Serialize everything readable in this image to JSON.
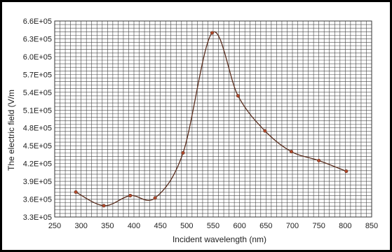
{
  "chart_data": {
    "type": "line",
    "title": "",
    "xlabel": "Incident wavelength (nm)",
    "ylabel": "The electric field (V/m",
    "xlim": [
      250,
      850
    ],
    "ylim": [
      330000,
      660000
    ],
    "x_ticks": [
      250,
      300,
      350,
      400,
      450,
      500,
      550,
      600,
      650,
      700,
      750,
      800,
      850
    ],
    "x_tick_labels": [
      "250",
      "300",
      "350",
      "400",
      "450",
      "500",
      "550",
      "600",
      "650",
      "700",
      "750",
      "800",
      "850"
    ],
    "y_ticks": [
      330000,
      360000,
      390000,
      420000,
      450000,
      480000,
      510000,
      540000,
      570000,
      600000,
      630000,
      660000
    ],
    "y_tick_labels": [
      "3.3E+05",
      "3.6E+05",
      "3.9E+05",
      "4.2E+05",
      "4.5E+05",
      "4.8E+05",
      "5.1E+05",
      "5.4E+05",
      "5.7E+05",
      "6.0E+05",
      "6.3E+05",
      "6.6E+05"
    ],
    "grid": true,
    "legend": false,
    "series": [
      {
        "x": [
          290,
          343,
          393,
          440,
          493,
          548,
          597,
          648,
          698,
          750,
          802
        ],
        "y": [
          372000,
          349000,
          366000,
          362000,
          438000,
          640000,
          534000,
          475000,
          440000,
          425000,
          407000
        ]
      }
    ],
    "colors": {
      "line": "#5a2e1e",
      "marker": "#b54a2c",
      "grid": "#444444",
      "frame": "#000000",
      "background": "#ffffff"
    }
  }
}
